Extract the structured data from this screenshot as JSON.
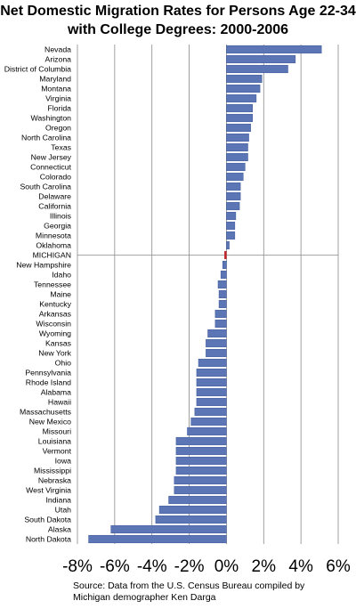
{
  "chart_data": {
    "type": "bar",
    "orientation": "horizontal",
    "title_line1": "Net Domestic Migration Rates for Persons Age 22-34",
    "title_line2": "with College Degrees: 2000-2006",
    "xlabel": "",
    "ylabel": "",
    "xlim": [
      -8,
      6
    ],
    "x_ticks": [
      "-8%",
      "-6%",
      "-4%",
      "-2%",
      "0%",
      "2%",
      "4%",
      "6%"
    ],
    "x_tick_values": [
      -8,
      -6,
      -4,
      -2,
      0,
      2,
      4,
      6
    ],
    "highlight_category": "MICHIGAN",
    "colors": {
      "bar": "#5b75b5",
      "bar_edge": "#3e5a9a",
      "highlight": "#c0272d",
      "grid": "#8a8a8a"
    },
    "categories": [
      "Nevada",
      "Arizona",
      "District of Columbia",
      "Maryland",
      "Montana",
      "Virginia",
      "Florida",
      "Washington",
      "Oregon",
      "North Carolina",
      "Texas",
      "New Jersey",
      "Connecticut",
      "Colorado",
      "South Carolina",
      "Delaware",
      "California",
      "Illinois",
      "Georgia",
      "Minnesota",
      "Oklahoma",
      "MICHIGAN",
      "New Hampshire",
      "Idaho",
      "Tennessee",
      "Maine",
      "Kentucky",
      "Arkansas",
      "Wisconsin",
      "Wyoming",
      "Kansas",
      "New York",
      "Ohio",
      "Pennsylvania",
      "Rhode Island",
      "Alabama",
      "Hawaii",
      "Massachusetts",
      "New Mexico",
      "Missouri",
      "Louisiana",
      "Vermont",
      "Iowa",
      "Mississippi",
      "Nebraska",
      "West Virginia",
      "Indiana",
      "Utah",
      "South Dakota",
      "Alaska",
      "North Dakota"
    ],
    "values": [
      5.1,
      3.7,
      3.3,
      1.9,
      1.8,
      1.6,
      1.4,
      1.4,
      1.3,
      1.2,
      1.15,
      1.15,
      1.0,
      0.9,
      0.75,
      0.75,
      0.7,
      0.5,
      0.45,
      0.45,
      0.15,
      -0.1,
      -0.2,
      -0.3,
      -0.45,
      -0.4,
      -0.4,
      -0.6,
      -0.6,
      -1.0,
      -1.1,
      -1.1,
      -1.5,
      -1.6,
      -1.6,
      -1.6,
      -1.6,
      -1.7,
      -1.9,
      -2.1,
      -2.7,
      -2.7,
      -2.7,
      -2.7,
      -2.8,
      -2.8,
      -3.1,
      -3.6,
      -3.8,
      -6.2,
      -7.4
    ]
  },
  "source": {
    "line1": "Source: Data from the U.S. Census Bureau compiled by",
    "line2": "Michigan demographer Ken Darga"
  }
}
